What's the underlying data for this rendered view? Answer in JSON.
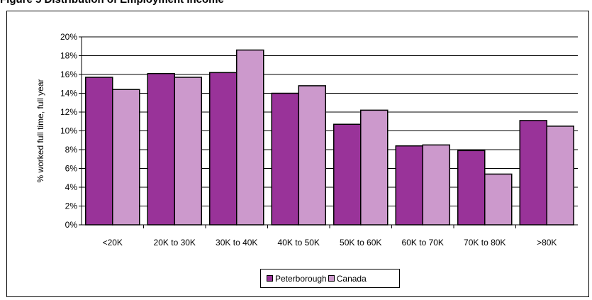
{
  "page_title": "Figure 5      Distribution of Employment Income",
  "chart_data": {
    "type": "bar",
    "title": "",
    "xlabel": "",
    "ylabel": "% worked full time, full year",
    "categories": [
      "<20K",
      "20K to 30K",
      "30K to 40K",
      "40K to 50K",
      "50K to 60K",
      "60K to 70K",
      "70K to 80K",
      ">80K"
    ],
    "series": [
      {
        "name": "Peterborough",
        "color": "#993399",
        "values": [
          15.7,
          16.1,
          16.2,
          14.0,
          10.7,
          8.4,
          7.9,
          11.1
        ]
      },
      {
        "name": "Canada",
        "color": "#cc99cc",
        "values": [
          14.4,
          15.7,
          18.6,
          14.8,
          12.2,
          8.5,
          5.4,
          10.5
        ]
      }
    ],
    "ylim": [
      0,
      20
    ],
    "yticks": [
      "0%",
      "2%",
      "4%",
      "6%",
      "8%",
      "10%",
      "12%",
      "14%",
      "16%",
      "18%",
      "20%"
    ],
    "grid": true,
    "legend_position": "bottom"
  }
}
